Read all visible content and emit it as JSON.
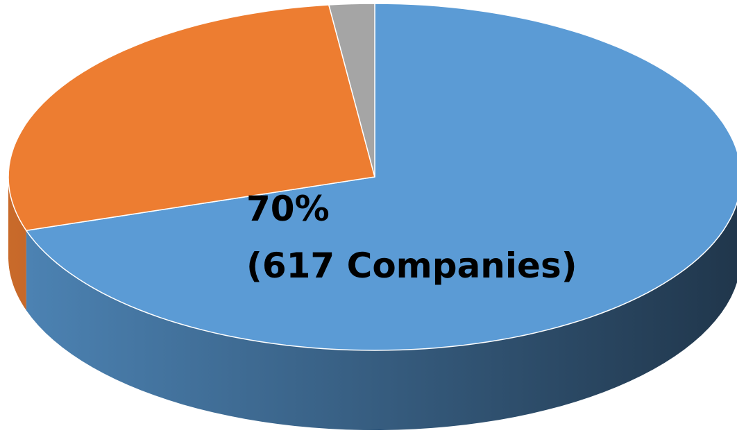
{
  "chart_data": {
    "type": "pie3d",
    "values": [
      70,
      28,
      2
    ],
    "value_labels": [
      "70%",
      null,
      null
    ],
    "annotation": "(617 Companies)",
    "colors": [
      "#5b9bd5",
      "#ed7d31",
      "#a5a5a5"
    ],
    "start_angle": 0,
    "direction": "clockwise"
  }
}
